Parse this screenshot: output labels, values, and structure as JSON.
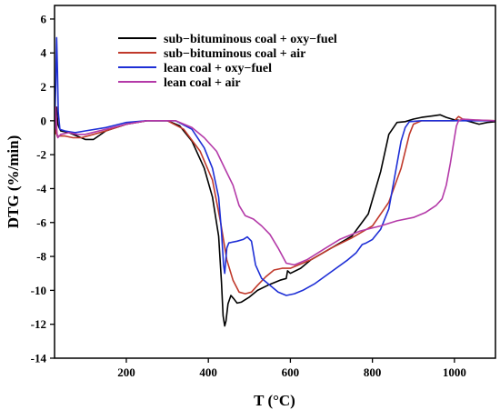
{
  "chart_data": {
    "type": "line",
    "title": "",
    "xlabel": "T (°C)",
    "ylabel": "DTG (%/min)",
    "xlim": [
      25,
      1100
    ],
    "ylim": [
      -14,
      6.8
    ],
    "xticks": [
      200,
      400,
      600,
      800,
      1000
    ],
    "yticks": [
      6,
      4,
      2,
      0,
      -2,
      -4,
      -6,
      -8,
      -10,
      -12,
      -14
    ],
    "grid": false,
    "legend_position": "top-right",
    "series": [
      {
        "name": "sub−bituminous coal + oxy−fuel",
        "color": "#000000",
        "points": [
          [
            27,
            -0.3
          ],
          [
            30,
            0.8
          ],
          [
            33,
            -0.2
          ],
          [
            36,
            -0.4
          ],
          [
            40,
            -0.6
          ],
          [
            60,
            -0.7
          ],
          [
            80,
            -0.9
          ],
          [
            100,
            -1.1
          ],
          [
            120,
            -1.1
          ],
          [
            150,
            -0.6
          ],
          [
            200,
            -0.2
          ],
          [
            250,
            0.0
          ],
          [
            300,
            0.0
          ],
          [
            330,
            -0.3
          ],
          [
            360,
            -1.2
          ],
          [
            390,
            -2.8
          ],
          [
            410,
            -4.5
          ],
          [
            425,
            -6.8
          ],
          [
            432,
            -9.5
          ],
          [
            436,
            -11.5
          ],
          [
            440,
            -12.1
          ],
          [
            443,
            -11.8
          ],
          [
            448,
            -10.8
          ],
          [
            455,
            -10.3
          ],
          [
            462,
            -10.5
          ],
          [
            470,
            -10.75
          ],
          [
            480,
            -10.7
          ],
          [
            500,
            -10.4
          ],
          [
            520,
            -10.0
          ],
          [
            545,
            -9.7
          ],
          [
            575,
            -9.4
          ],
          [
            590,
            -9.3
          ],
          [
            593,
            -8.85
          ],
          [
            600,
            -9.0
          ],
          [
            625,
            -8.7
          ],
          [
            650,
            -8.2
          ],
          [
            700,
            -7.5
          ],
          [
            750,
            -6.8
          ],
          [
            790,
            -5.5
          ],
          [
            820,
            -3.0
          ],
          [
            840,
            -0.8
          ],
          [
            860,
            -0.1
          ],
          [
            880,
            -0.05
          ],
          [
            900,
            0.1
          ],
          [
            920,
            0.2
          ],
          [
            950,
            0.3
          ],
          [
            965,
            0.35
          ],
          [
            980,
            0.2
          ],
          [
            1000,
            0.05
          ],
          [
            1030,
            0.0
          ],
          [
            1060,
            -0.2
          ],
          [
            1080,
            -0.1
          ],
          [
            1100,
            -0.05
          ]
        ]
      },
      {
        "name": "sub−bituminous coal + air",
        "color": "#c0392b",
        "points": [
          [
            27,
            -0.8
          ],
          [
            29,
            0.3
          ],
          [
            31,
            -0.9
          ],
          [
            35,
            -0.9
          ],
          [
            50,
            -0.9
          ],
          [
            70,
            -1.0
          ],
          [
            90,
            -1.0
          ],
          [
            120,
            -0.8
          ],
          [
            150,
            -0.6
          ],
          [
            200,
            -0.2
          ],
          [
            250,
            0.0
          ],
          [
            300,
            0.0
          ],
          [
            340,
            -0.5
          ],
          [
            380,
            -1.8
          ],
          [
            410,
            -3.5
          ],
          [
            430,
            -6.0
          ],
          [
            445,
            -8.2
          ],
          [
            460,
            -9.4
          ],
          [
            475,
            -10.1
          ],
          [
            490,
            -10.2
          ],
          [
            505,
            -10.1
          ],
          [
            520,
            -9.7
          ],
          [
            540,
            -9.2
          ],
          [
            560,
            -8.8
          ],
          [
            580,
            -8.7
          ],
          [
            600,
            -8.7
          ],
          [
            620,
            -8.5
          ],
          [
            650,
            -8.2
          ],
          [
            700,
            -7.5
          ],
          [
            750,
            -6.9
          ],
          [
            800,
            -6.2
          ],
          [
            840,
            -4.8
          ],
          [
            870,
            -2.8
          ],
          [
            890,
            -0.8
          ],
          [
            900,
            -0.2
          ],
          [
            920,
            0.0
          ],
          [
            960,
            0.0
          ],
          [
            1000,
            0.0
          ],
          [
            1010,
            0.25
          ],
          [
            1020,
            0.1
          ],
          [
            1040,
            0.05
          ],
          [
            1100,
            0.0
          ]
        ]
      },
      {
        "name": "lean coal + oxy−fuel",
        "color": "#1e2fd6",
        "points": [
          [
            26,
            0.5
          ],
          [
            28,
            2.2
          ],
          [
            30,
            4.9
          ],
          [
            32,
            3.0
          ],
          [
            34,
            0.5
          ],
          [
            38,
            -0.5
          ],
          [
            50,
            -0.6
          ],
          [
            75,
            -0.7
          ],
          [
            100,
            -0.6
          ],
          [
            150,
            -0.4
          ],
          [
            200,
            -0.1
          ],
          [
            250,
            0.0
          ],
          [
            320,
            0.0
          ],
          [
            360,
            -0.5
          ],
          [
            390,
            -1.6
          ],
          [
            410,
            -2.8
          ],
          [
            425,
            -4.5
          ],
          [
            432,
            -6.5
          ],
          [
            437,
            -8.5
          ],
          [
            440,
            -9.0
          ],
          [
            445,
            -7.5
          ],
          [
            450,
            -7.2
          ],
          [
            470,
            -7.1
          ],
          [
            485,
            -7.0
          ],
          [
            495,
            -6.85
          ],
          [
            505,
            -7.1
          ],
          [
            515,
            -8.5
          ],
          [
            530,
            -9.3
          ],
          [
            550,
            -9.7
          ],
          [
            570,
            -10.1
          ],
          [
            590,
            -10.3
          ],
          [
            610,
            -10.2
          ],
          [
            630,
            -10.0
          ],
          [
            660,
            -9.6
          ],
          [
            700,
            -8.9
          ],
          [
            740,
            -8.2
          ],
          [
            760,
            -7.8
          ],
          [
            775,
            -7.3
          ],
          [
            785,
            -7.2
          ],
          [
            800,
            -7.0
          ],
          [
            820,
            -6.4
          ],
          [
            840,
            -5.2
          ],
          [
            855,
            -3.2
          ],
          [
            870,
            -1.2
          ],
          [
            880,
            -0.4
          ],
          [
            890,
            -0.05
          ],
          [
            920,
            0.0
          ],
          [
            1000,
            0.0
          ],
          [
            1100,
            0.0
          ]
        ]
      },
      {
        "name": "lean coal + air",
        "color": "#b43aa8",
        "points": [
          [
            26,
            -0.5
          ],
          [
            28,
            0.8
          ],
          [
            30,
            -0.6
          ],
          [
            33,
            -1.0
          ],
          [
            40,
            -0.8
          ],
          [
            60,
            -0.7
          ],
          [
            80,
            -0.8
          ],
          [
            100,
            -0.8
          ],
          [
            150,
            -0.5
          ],
          [
            200,
            -0.2
          ],
          [
            250,
            0.0
          ],
          [
            320,
            0.0
          ],
          [
            360,
            -0.4
          ],
          [
            390,
            -1.0
          ],
          [
            420,
            -1.8
          ],
          [
            440,
            -2.8
          ],
          [
            460,
            -3.8
          ],
          [
            475,
            -5.0
          ],
          [
            490,
            -5.6
          ],
          [
            510,
            -5.8
          ],
          [
            530,
            -6.2
          ],
          [
            550,
            -6.7
          ],
          [
            570,
            -7.5
          ],
          [
            590,
            -8.4
          ],
          [
            610,
            -8.5
          ],
          [
            640,
            -8.2
          ],
          [
            680,
            -7.6
          ],
          [
            720,
            -7.0
          ],
          [
            770,
            -6.5
          ],
          [
            820,
            -6.2
          ],
          [
            860,
            -5.9
          ],
          [
            900,
            -5.7
          ],
          [
            930,
            -5.4
          ],
          [
            955,
            -5.0
          ],
          [
            970,
            -4.6
          ],
          [
            980,
            -3.8
          ],
          [
            990,
            -2.5
          ],
          [
            1000,
            -1.0
          ],
          [
            1005,
            -0.3
          ],
          [
            1010,
            0.0
          ],
          [
            1020,
            0.1
          ],
          [
            1050,
            0.05
          ],
          [
            1100,
            0.0
          ]
        ]
      }
    ]
  }
}
